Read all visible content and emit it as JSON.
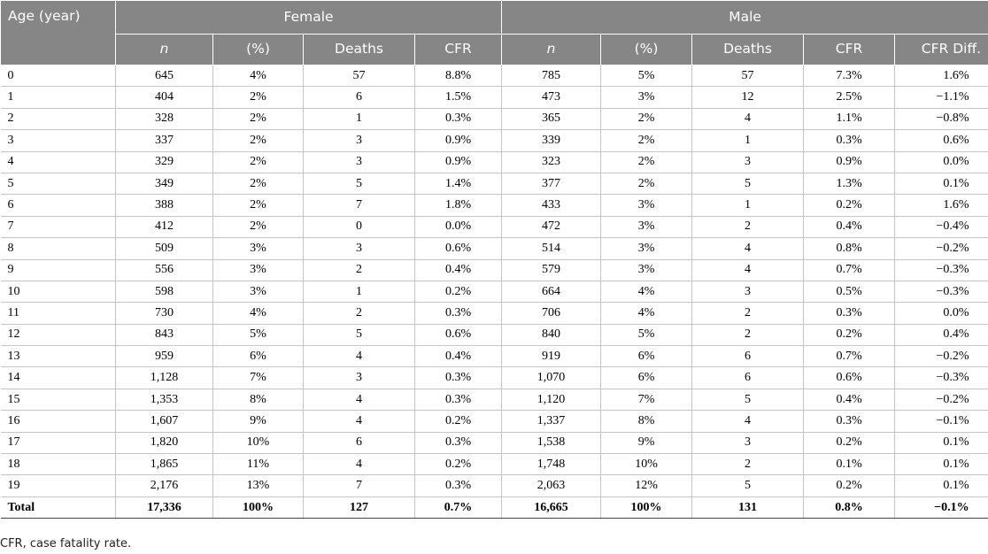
{
  "header": {
    "age_label": "Age (year)",
    "female_label": "Female",
    "male_label": "Male",
    "female_cols": [
      "n",
      "(%)",
      "Deaths",
      "CFR"
    ],
    "male_cols": [
      "n",
      "(%)",
      "Deaths",
      "CFR",
      "CFR Diff."
    ]
  },
  "rows": [
    [
      "0",
      "645",
      "4%",
      "57",
      "8.8%",
      "785",
      "5%",
      "57",
      "7.3%",
      "1.6%"
    ],
    [
      "1",
      "404",
      "2%",
      "6",
      "1.5%",
      "473",
      "3%",
      "12",
      "2.5%",
      "−1.1%"
    ],
    [
      "2",
      "328",
      "2%",
      "1",
      "0.3%",
      "365",
      "2%",
      "4",
      "1.1%",
      "−0.8%"
    ],
    [
      "3",
      "337",
      "2%",
      "3",
      "0.9%",
      "339",
      "2%",
      "1",
      "0.3%",
      "0.6%"
    ],
    [
      "4",
      "329",
      "2%",
      "3",
      "0.9%",
      "323",
      "2%",
      "3",
      "0.9%",
      "0.0%"
    ],
    [
      "5",
      "349",
      "2%",
      "5",
      "1.4%",
      "377",
      "2%",
      "5",
      "1.3%",
      "0.1%"
    ],
    [
      "6",
      "388",
      "2%",
      "7",
      "1.8%",
      "433",
      "3%",
      "1",
      "0.2%",
      "1.6%"
    ],
    [
      "7",
      "412",
      "2%",
      "0",
      "0.0%",
      "472",
      "3%",
      "2",
      "0.4%",
      "−0.4%"
    ],
    [
      "8",
      "509",
      "3%",
      "3",
      "0.6%",
      "514",
      "3%",
      "4",
      "0.8%",
      "−0.2%"
    ],
    [
      "9",
      "556",
      "3%",
      "2",
      "0.4%",
      "579",
      "3%",
      "4",
      "0.7%",
      "−0.3%"
    ],
    [
      "10",
      "598",
      "3%",
      "1",
      "0.2%",
      "664",
      "4%",
      "3",
      "0.5%",
      "−0.3%"
    ],
    [
      "11",
      "730",
      "4%",
      "2",
      "0.3%",
      "706",
      "4%",
      "2",
      "0.3%",
      "0.0%"
    ],
    [
      "12",
      "843",
      "5%",
      "5",
      "0.6%",
      "840",
      "5%",
      "2",
      "0.2%",
      "0.4%"
    ],
    [
      "13",
      "959",
      "6%",
      "4",
      "0.4%",
      "919",
      "6%",
      "6",
      "0.7%",
      "−0.2%"
    ],
    [
      "14",
      "1,128",
      "7%",
      "3",
      "0.3%",
      "1,070",
      "6%",
      "6",
      "0.6%",
      "−0.3%"
    ],
    [
      "15",
      "1,353",
      "8%",
      "4",
      "0.3%",
      "1,120",
      "7%",
      "5",
      "0.4%",
      "−0.2%"
    ],
    [
      "16",
      "1,607",
      "9%",
      "4",
      "0.2%",
      "1,337",
      "8%",
      "4",
      "0.3%",
      "−0.1%"
    ],
    [
      "17",
      "1,820",
      "10%",
      "6",
      "0.3%",
      "1,538",
      "9%",
      "3",
      "0.2%",
      "0.1%"
    ],
    [
      "18",
      "1,865",
      "11%",
      "4",
      "0.2%",
      "1,748",
      "10%",
      "2",
      "0.1%",
      "0.1%"
    ],
    [
      "19",
      "2,176",
      "13%",
      "7",
      "0.3%",
      "2,063",
      "12%",
      "5",
      "0.2%",
      "0.1%"
    ]
  ],
  "total": [
    "Total",
    "17,336",
    "100%",
    "127",
    "0.7%",
    "16,665",
    "100%",
    "131",
    "0.8%",
    "−0.1%"
  ],
  "footnote": "CFR, case fatality rate."
}
